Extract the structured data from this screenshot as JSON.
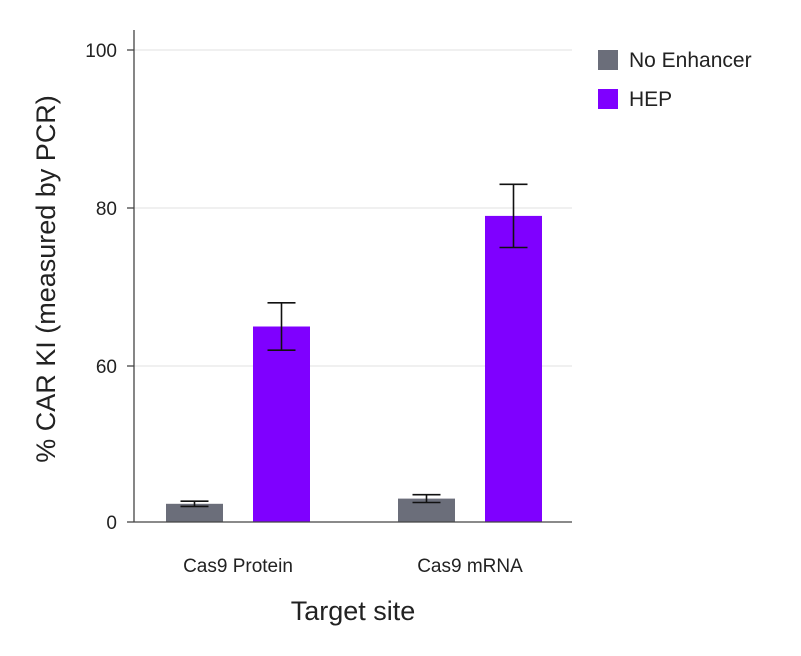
{
  "chart_data": {
    "type": "bar",
    "categories": [
      "Cas9 Protein",
      "Cas9 mRNA"
    ],
    "series": [
      {
        "name": "No Enhancer",
        "color": "#6b6e7a",
        "values": [
          7,
          9
        ],
        "error": [
          1,
          1.5
        ]
      },
      {
        "name": "HEP",
        "color": "#7f00ff",
        "values": [
          65,
          79
        ],
        "error": [
          3,
          4
        ]
      }
    ],
    "yticks": [
      {
        "value": 0,
        "label": "0"
      },
      {
        "value": 60,
        "label": "60"
      },
      {
        "value": 80,
        "label": "80"
      },
      {
        "value": 100,
        "label": "100"
      }
    ],
    "xlabel": "Target site",
    "ylabel": "% CAR KI (measured by PCR)",
    "grid": true,
    "legend": "top-right",
    "y_axis_break": "broken scale between 0 and 60"
  }
}
